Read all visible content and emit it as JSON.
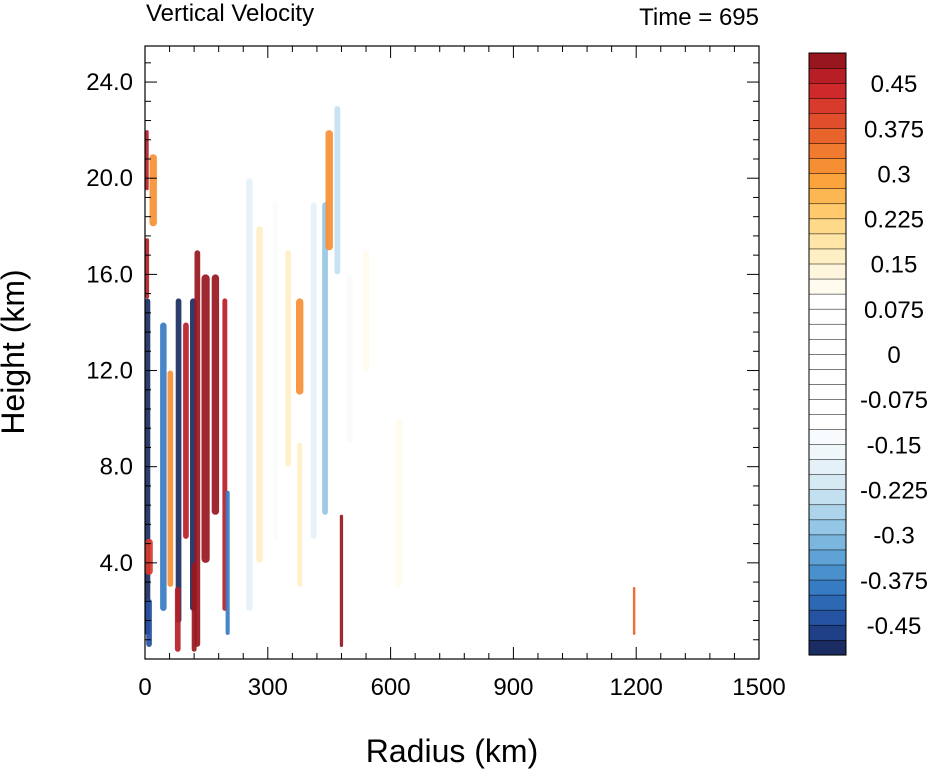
{
  "chart_data": {
    "type": "heatmap",
    "title": "Vertical Velocity",
    "subtitle": "Time = 695",
    "xlabel": "Radius (km)",
    "ylabel": "Height (km)",
    "xlim": [
      0,
      1500
    ],
    "ylim": [
      0,
      25.5
    ],
    "xticks": [
      0,
      300,
      600,
      900,
      1200,
      1500
    ],
    "xtick_labels": [
      "0",
      "300",
      "600",
      "900",
      "1200",
      "1500"
    ],
    "yticks": [
      4,
      8,
      12,
      16,
      20,
      24
    ],
    "ytick_labels": [
      "4.0",
      "8.0",
      "12.0",
      "16.0",
      "20.0",
      "24.0"
    ],
    "grid": false,
    "colorbar": {
      "placement": "right",
      "levels": [
        -0.5,
        -0.475,
        -0.45,
        -0.425,
        -0.4,
        -0.375,
        -0.35,
        -0.325,
        -0.3,
        -0.275,
        -0.25,
        -0.225,
        -0.2,
        -0.175,
        -0.15,
        -0.125,
        -0.1,
        -0.075,
        -0.05,
        -0.025,
        0,
        0.025,
        0.05,
        0.075,
        0.1,
        0.125,
        0.15,
        0.175,
        0.2,
        0.225,
        0.25,
        0.275,
        0.3,
        0.325,
        0.35,
        0.375,
        0.4,
        0.425,
        0.45,
        0.475,
        0.5
      ],
      "colors": [
        "#1a2c62",
        "#1f3f86",
        "#2553a1",
        "#2d68b4",
        "#377bc2",
        "#4a90cc",
        "#5fa3d6",
        "#7ab6de",
        "#94c6e5",
        "#add4eb",
        "#c3e0f0",
        "#d6eaf4",
        "#e4f1f8",
        "#f0f7fb",
        "#f8fbfd",
        "#ffffff",
        "#ffffff",
        "#ffffff",
        "#ffffff",
        "#ffffff",
        "#ffffff",
        "#ffffff",
        "#ffffff",
        "#ffffff",
        "#fffbee",
        "#fff5dc",
        "#ffefc4",
        "#ffe5a8",
        "#ffd98a",
        "#ffc96c",
        "#fdb752",
        "#fba43e",
        "#f68f34",
        "#f07b2e",
        "#e8642b",
        "#e04e2b",
        "#d83a2c",
        "#ce2a2b",
        "#b81e26",
        "#98161e"
      ],
      "labels": [
        {
          "value": 0.45,
          "text": "0.45"
        },
        {
          "value": 0.375,
          "text": "0.375"
        },
        {
          "value": 0.3,
          "text": "0.3"
        },
        {
          "value": 0.225,
          "text": "0.225"
        },
        {
          "value": 0.15,
          "text": "0.15"
        },
        {
          "value": 0.075,
          "text": "0.075"
        },
        {
          "value": 0,
          "text": "0"
        },
        {
          "value": -0.075,
          "text": "-0.075"
        },
        {
          "value": -0.15,
          "text": "-0.15"
        },
        {
          "value": -0.225,
          "text": "-0.225"
        },
        {
          "value": -0.3,
          "text": "-0.3"
        },
        {
          "value": -0.375,
          "text": "-0.375"
        },
        {
          "value": -0.45,
          "text": "-0.45"
        }
      ]
    },
    "features": [
      {
        "x": 6,
        "width": 14,
        "z0": 1,
        "z1": 15,
        "value": -0.5
      },
      {
        "x": 5,
        "width": 10,
        "z0": 15,
        "z1": 17.5,
        "value": 0.45
      },
      {
        "x": 5,
        "width": 8,
        "z0": 19.5,
        "z1": 22,
        "value": 0.45
      },
      {
        "x": 20,
        "width": 18,
        "z0": 18,
        "z1": 21,
        "value": 0.3
      },
      {
        "x": 10,
        "width": 18,
        "z0": 3.5,
        "z1": 5,
        "value": 0.4
      },
      {
        "x": 10,
        "width": 14,
        "z0": 0.5,
        "z1": 2.5,
        "value": -0.45
      },
      {
        "x": 45,
        "width": 16,
        "z0": 2,
        "z1": 14,
        "value": -0.4
      },
      {
        "x": 62,
        "width": 14,
        "z0": 3,
        "z1": 12,
        "value": 0.3
      },
      {
        "x": 82,
        "width": 14,
        "z0": 1.5,
        "z1": 15,
        "value": -0.5
      },
      {
        "x": 100,
        "width": 14,
        "z0": 5,
        "z1": 14,
        "value": 0.45
      },
      {
        "x": 118,
        "width": 16,
        "z0": 2,
        "z1": 15,
        "value": -0.5
      },
      {
        "x": 128,
        "width": 14,
        "z0": 0.5,
        "z1": 17,
        "value": 0.5
      },
      {
        "x": 148,
        "width": 20,
        "z0": 4,
        "z1": 16,
        "value": 0.5
      },
      {
        "x": 172,
        "width": 18,
        "z0": 6,
        "z1": 16,
        "value": 0.5
      },
      {
        "x": 195,
        "width": 12,
        "z0": 2,
        "z1": 15,
        "value": 0.45
      },
      {
        "x": 202,
        "width": 10,
        "z0": 1,
        "z1": 7,
        "value": -0.4
      },
      {
        "x": 80,
        "width": 14,
        "z0": 0.3,
        "z1": 3,
        "value": 0.45
      },
      {
        "x": 120,
        "width": 12,
        "z0": 0.3,
        "z1": 4,
        "value": 0.5
      },
      {
        "x": 255,
        "width": 16,
        "z0": 2,
        "z1": 20,
        "value": -0.2
      },
      {
        "x": 280,
        "width": 16,
        "z0": 4,
        "z1": 18,
        "value": 0.15
      },
      {
        "x": 318,
        "width": 12,
        "z0": 5,
        "z1": 19,
        "value": -0.15
      },
      {
        "x": 350,
        "width": 14,
        "z0": 8,
        "z1": 17,
        "value": 0.15
      },
      {
        "x": 378,
        "width": 18,
        "z0": 11,
        "z1": 15,
        "value": 0.3
      },
      {
        "x": 378,
        "width": 12,
        "z0": 3,
        "z1": 9,
        "value": 0.15
      },
      {
        "x": 412,
        "width": 14,
        "z0": 5,
        "z1": 19,
        "value": -0.2
      },
      {
        "x": 440,
        "width": 14,
        "z0": 6,
        "z1": 19,
        "value": -0.3
      },
      {
        "x": 450,
        "width": 18,
        "z0": 17,
        "z1": 22,
        "value": 0.3
      },
      {
        "x": 470,
        "width": 14,
        "z0": 16,
        "z1": 23,
        "value": -0.25
      },
      {
        "x": 480,
        "width": 8,
        "z0": 0.5,
        "z1": 6,
        "value": 0.5
      },
      {
        "x": 500,
        "width": 16,
        "z0": 9,
        "z1": 16,
        "value": -0.15
      },
      {
        "x": 540,
        "width": 16,
        "z0": 12,
        "z1": 17,
        "value": 0.1
      },
      {
        "x": 620,
        "width": 16,
        "z0": 3,
        "z1": 10,
        "value": 0.1
      },
      {
        "x": 680,
        "width": 14,
        "z0": 5,
        "z1": 13,
        "value": 0.08
      },
      {
        "x": 720,
        "width": 14,
        "z0": 1,
        "z1": 6,
        "value": -0.08
      },
      {
        "x": 1195,
        "width": 6,
        "z0": 1,
        "z1": 3,
        "value": 0.35
      }
    ]
  }
}
